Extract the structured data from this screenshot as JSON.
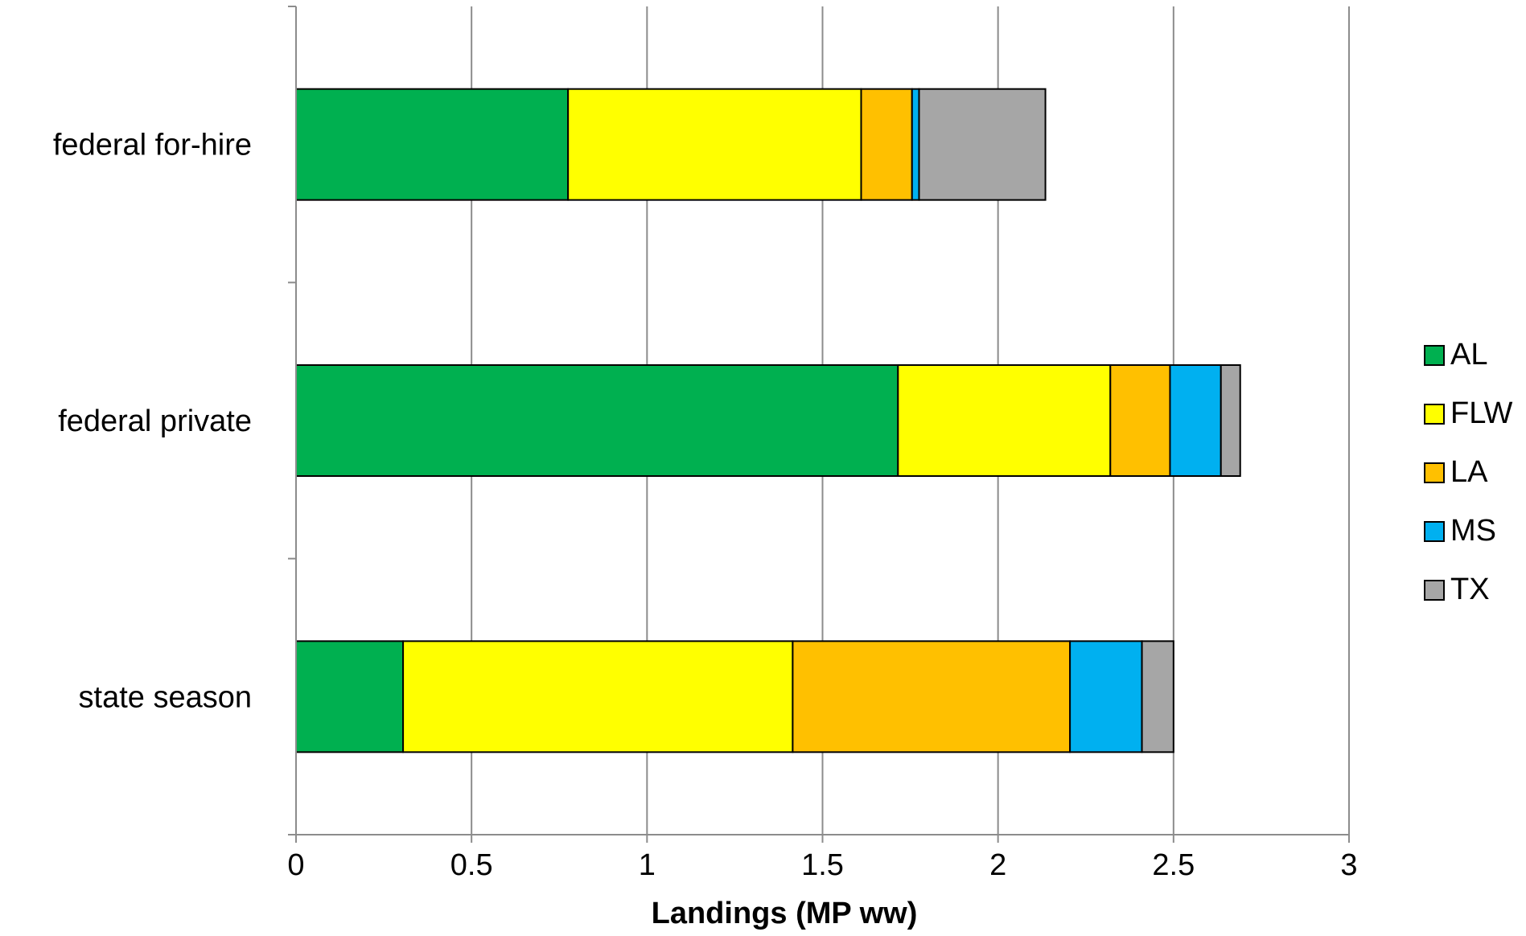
{
  "chart_data": {
    "type": "bar",
    "orientation": "horizontal",
    "stacked": true,
    "categories": [
      "federal for-hire",
      "federal private",
      "state season"
    ],
    "series": [
      {
        "name": "AL",
        "color": "#00b050",
        "values": [
          0.775,
          1.715,
          0.305
        ]
      },
      {
        "name": "FLW",
        "color": "#ffff00",
        "values": [
          0.835,
          0.605,
          1.11
        ]
      },
      {
        "name": "LA",
        "color": "#ffc000",
        "values": [
          0.145,
          0.17,
          0.79
        ]
      },
      {
        "name": "MS",
        "color": "#00b0f0",
        "values": [
          0.02,
          0.145,
          0.205
        ]
      },
      {
        "name": "TX",
        "color": "#a6a6a6",
        "values": [
          0.36,
          0.055,
          0.09
        ]
      }
    ],
    "xticks": [
      "0",
      "0.5",
      "1",
      "1.5",
      "2",
      "2.5",
      "3"
    ],
    "xlim": [
      0,
      3
    ],
    "xlabel": "Landings (MP ww)",
    "ylabel": "",
    "title": "",
    "grid": "vertical",
    "legend_position": "right"
  }
}
